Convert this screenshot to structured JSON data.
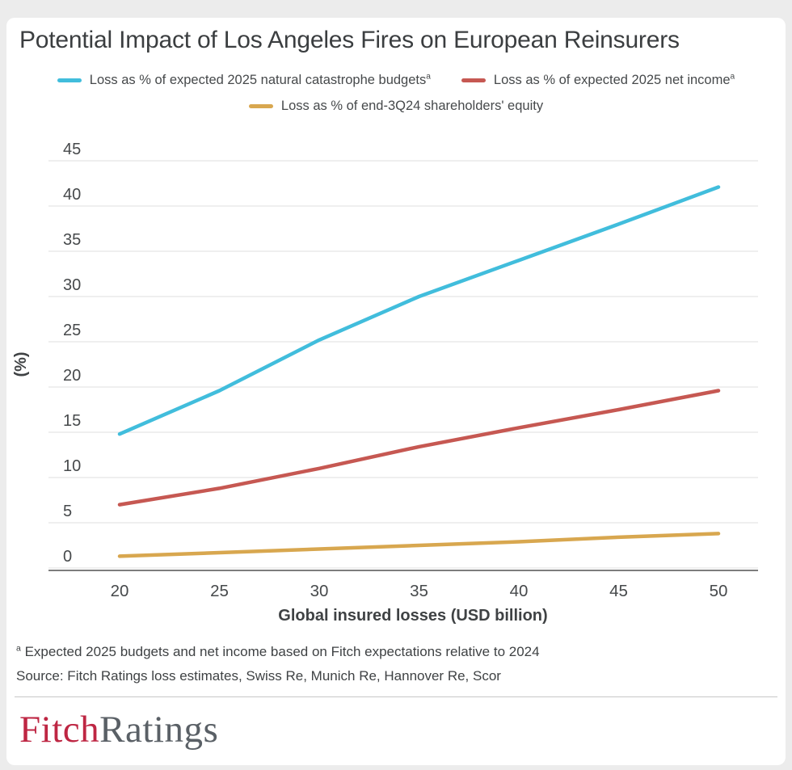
{
  "title": "Potential Impact of Los Angeles Fires on European Reinsurers",
  "chart_data": {
    "type": "line",
    "x": [
      20,
      25,
      30,
      35,
      40,
      45,
      50
    ],
    "x_tick_labels": [
      "20",
      "25",
      "30",
      "35",
      "40",
      "45",
      "50"
    ],
    "y_ticks": [
      0,
      5,
      10,
      15,
      20,
      25,
      30,
      35,
      40,
      45
    ],
    "ylim": [
      0,
      45
    ],
    "xlabel": "Global insured losses (USD billion)",
    "ylabel": "(%)",
    "grid": true,
    "legend_position": "top",
    "series": [
      {
        "name": "Loss as % of expected 2025 natural catastrophe budgets",
        "sup": "a",
        "color": "#41BDDC",
        "values": [
          14.8,
          19.6,
          25.2,
          30.0,
          34.0,
          38.0,
          42.1
        ]
      },
      {
        "name": "Loss as % of expected 2025 net income",
        "sup": "a",
        "color": "#C65852",
        "values": [
          7.0,
          8.8,
          11.0,
          13.4,
          15.5,
          17.5,
          19.6
        ]
      },
      {
        "name": "Loss as % of end-3Q24 shareholders' equity",
        "sup": "",
        "color": "#D8A74F",
        "values": [
          1.3,
          1.7,
          2.1,
          2.5,
          2.9,
          3.4,
          3.8
        ]
      }
    ],
    "axis_color": "#7D7D7D",
    "gridline_color": "#EAEAEA",
    "tick_label_color": "#46494B"
  },
  "footnote": {
    "marker": "a",
    "text": " Expected 2025 budgets and net income based on Fitch expectations relative to 2024"
  },
  "source": "Source: Fitch Ratings loss estimates, Swiss Re, Munich Re, Hannover Re, Scor",
  "logo": {
    "part1": "Fitch",
    "part2": "Ratings",
    "color1": "#BE2643",
    "color2": "#5A6066"
  }
}
